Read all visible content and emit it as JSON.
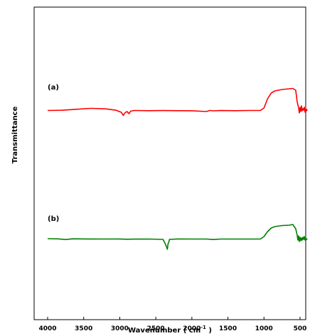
{
  "chart_data": {
    "type": "line",
    "title": "",
    "xlabel": "Wavenumber ( cm",
    "xlabel_sup": "-1",
    "xlabel_end": " )",
    "ylabel": "Transmittance",
    "xlim": [
      4000,
      400
    ],
    "xticks": [
      4000,
      3500,
      3000,
      2500,
      2000,
      1500,
      1000,
      500
    ],
    "x_reversed": true,
    "y_ticks_shown": false,
    "grid": false,
    "legend": "none",
    "series": [
      {
        "name": "(a)",
        "color": "#ff0000",
        "points": [
          [
            4000,
            0.5
          ],
          [
            3800,
            0.2
          ],
          [
            3600,
            -1.2
          ],
          [
            3400,
            -2.5
          ],
          [
            3200,
            -1.8
          ],
          [
            3050,
            0.2
          ],
          [
            2980,
            3.0
          ],
          [
            2950,
            7.5
          ],
          [
            2930,
            4.0
          ],
          [
            2900,
            2.0
          ],
          [
            2870,
            5.0
          ],
          [
            2850,
            1.5
          ],
          [
            2800,
            0.5
          ],
          [
            2600,
            0.8
          ],
          [
            2400,
            0.6
          ],
          [
            2200,
            0.8
          ],
          [
            2000,
            0.9
          ],
          [
            1800,
            2.0
          ],
          [
            1750,
            0.5
          ],
          [
            1700,
            1.0
          ],
          [
            1600,
            0.6
          ],
          [
            1400,
            0.8
          ],
          [
            1200,
            0.5
          ],
          [
            1050,
            0.5
          ],
          [
            1000,
            -3.0
          ],
          [
            950,
            -16.0
          ],
          [
            900,
            -24.0
          ],
          [
            850,
            -27.0
          ],
          [
            750,
            -29.0
          ],
          [
            650,
            -30.0
          ],
          [
            600,
            -30.5
          ],
          [
            560,
            -28.0
          ],
          [
            540,
            -12.0
          ],
          [
            520,
            -3.0
          ],
          [
            510,
            4.0
          ],
          [
            500,
            -4.0
          ],
          [
            490,
            2.0
          ],
          [
            480,
            -6.0
          ],
          [
            470,
            1.0
          ],
          [
            460,
            -2.0
          ],
          [
            450,
            0.0
          ],
          [
            440,
            -4.0
          ],
          [
            430,
            3.0
          ],
          [
            420,
            -2.0
          ],
          [
            410,
            1.0
          ],
          [
            400,
            -1.0
          ]
        ]
      },
      {
        "name": "(b)",
        "color": "#008000",
        "points": [
          [
            4000,
            0.0
          ],
          [
            3850,
            0.3
          ],
          [
            3750,
            1.2
          ],
          [
            3650,
            0.2
          ],
          [
            3450,
            0.4
          ],
          [
            3200,
            0.5
          ],
          [
            3000,
            0.4
          ],
          [
            2900,
            0.8
          ],
          [
            2800,
            0.6
          ],
          [
            2600,
            0.5
          ],
          [
            2400,
            1.0
          ],
          [
            2370,
            7.0
          ],
          [
            2350,
            12.0
          ],
          [
            2340,
            15.0
          ],
          [
            2330,
            7.0
          ],
          [
            2320,
            5.0
          ],
          [
            2310,
            1.0
          ],
          [
            2200,
            0.4
          ],
          [
            2000,
            0.5
          ],
          [
            1800,
            0.5
          ],
          [
            1700,
            1.2
          ],
          [
            1600,
            0.5
          ],
          [
            1400,
            0.5
          ],
          [
            1200,
            0.5
          ],
          [
            1050,
            0.5
          ],
          [
            1000,
            -3.0
          ],
          [
            950,
            -10.0
          ],
          [
            900,
            -15.0
          ],
          [
            850,
            -17.0
          ],
          [
            750,
            -18.5
          ],
          [
            650,
            -19.0
          ],
          [
            600,
            -20.0
          ],
          [
            560,
            -14.0
          ],
          [
            540,
            -5.0
          ],
          [
            530,
            2.0
          ],
          [
            520,
            -4.0
          ],
          [
            510,
            4.0
          ],
          [
            500,
            -2.0
          ],
          [
            490,
            3.0
          ],
          [
            480,
            -1.0
          ],
          [
            470,
            2.0
          ],
          [
            460,
            -2.0
          ],
          [
            450,
            1.0
          ],
          [
            440,
            -3.0
          ],
          [
            430,
            2.0
          ],
          [
            420,
            0.0
          ],
          [
            410,
            1.0
          ],
          [
            400,
            0.0
          ]
        ]
      }
    ]
  }
}
